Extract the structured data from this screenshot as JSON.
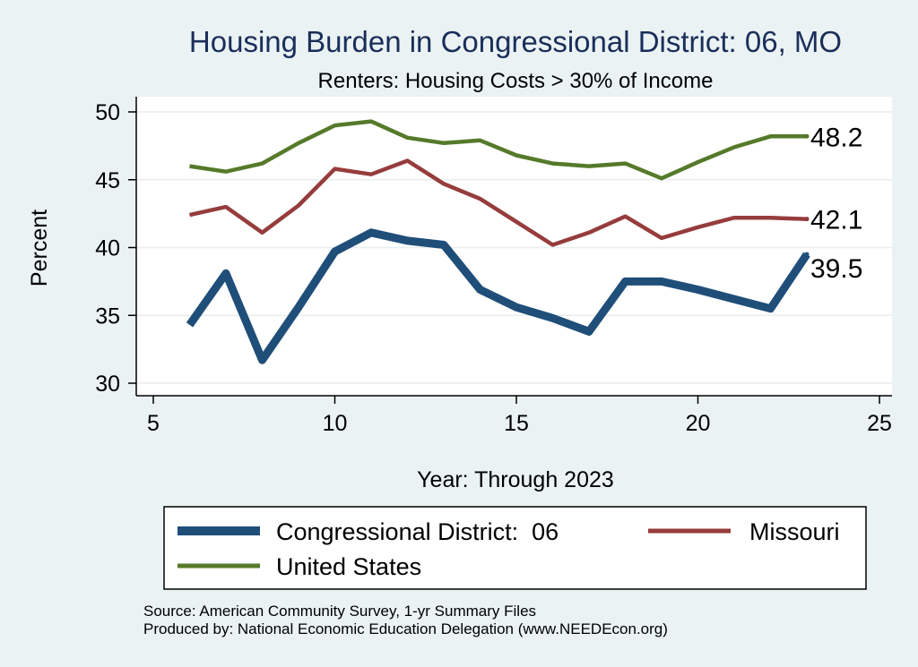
{
  "chart_data": {
    "type": "line",
    "title": "Housing Burden in Congressional District:  06, MO",
    "subtitle": "Renters: Housing Costs > 30% of Income",
    "xlabel": "Year: Through 2023",
    "ylabel": "Percent",
    "xlim": [
      5,
      25
    ],
    "ylim": [
      30,
      50
    ],
    "xticks": [
      5,
      10,
      15,
      20,
      25
    ],
    "yticks": [
      30,
      35,
      40,
      45,
      50
    ],
    "grid": "horizontal",
    "legend_position": "bottom",
    "series": [
      {
        "name": "Congressional District:  06",
        "color": "#1f4e79",
        "line_weight": "thick",
        "end_label": "39.5",
        "x": [
          6,
          7,
          8,
          9,
          10,
          11,
          12,
          13,
          14,
          15,
          16,
          17,
          18,
          19,
          20,
          21,
          22,
          23
        ],
        "values": [
          34.3,
          38.1,
          31.7,
          35.6,
          39.7,
          41.1,
          40.5,
          40.2,
          36.9,
          35.6,
          34.8,
          33.8,
          37.5,
          37.5,
          36.9,
          36.2,
          35.5,
          39.5
        ]
      },
      {
        "name": "Missouri",
        "color": "#963c3c",
        "line_weight": "medium",
        "end_label": "42.1",
        "x": [
          6,
          7,
          8,
          9,
          10,
          11,
          12,
          13,
          14,
          15,
          16,
          17,
          18,
          19,
          20,
          21,
          22,
          23
        ],
        "values": [
          42.4,
          43.0,
          41.1,
          43.1,
          45.8,
          45.4,
          46.4,
          44.7,
          43.6,
          41.9,
          40.2,
          41.1,
          42.3,
          40.7,
          41.5,
          42.2,
          42.2,
          42.1
        ]
      },
      {
        "name": "United States",
        "color": "#557a2a",
        "line_weight": "medium",
        "end_label": "48.2",
        "x": [
          6,
          7,
          8,
          9,
          10,
          11,
          12,
          13,
          14,
          15,
          16,
          17,
          18,
          19,
          20,
          21,
          22,
          23
        ],
        "values": [
          46.0,
          45.6,
          46.2,
          47.7,
          49.0,
          49.3,
          48.1,
          47.7,
          47.9,
          46.8,
          46.2,
          46.0,
          46.2,
          45.1,
          46.3,
          47.4,
          48.2,
          48.2
        ]
      }
    ]
  },
  "notes": {
    "source": "Source: American Community Survey, 1-yr Summary Files",
    "produced": "Produced by: National Economic Education Delegation (www.NEEDEcon.org)"
  }
}
